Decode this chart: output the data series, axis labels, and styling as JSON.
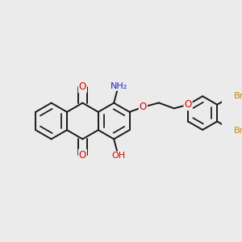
{
  "bg_color": "#ebebeb",
  "bond_color": "#1a1a1a",
  "bond_width": 1.4,
  "dbo": 0.055,
  "atom_colors": {
    "O": "#dd0000",
    "N": "#2222cc",
    "Br": "#cc8800",
    "C": "#1a1a1a"
  },
  "fs_main": 8.5,
  "fs_sub": 7.5,
  "R": 0.36,
  "b": 0.36
}
